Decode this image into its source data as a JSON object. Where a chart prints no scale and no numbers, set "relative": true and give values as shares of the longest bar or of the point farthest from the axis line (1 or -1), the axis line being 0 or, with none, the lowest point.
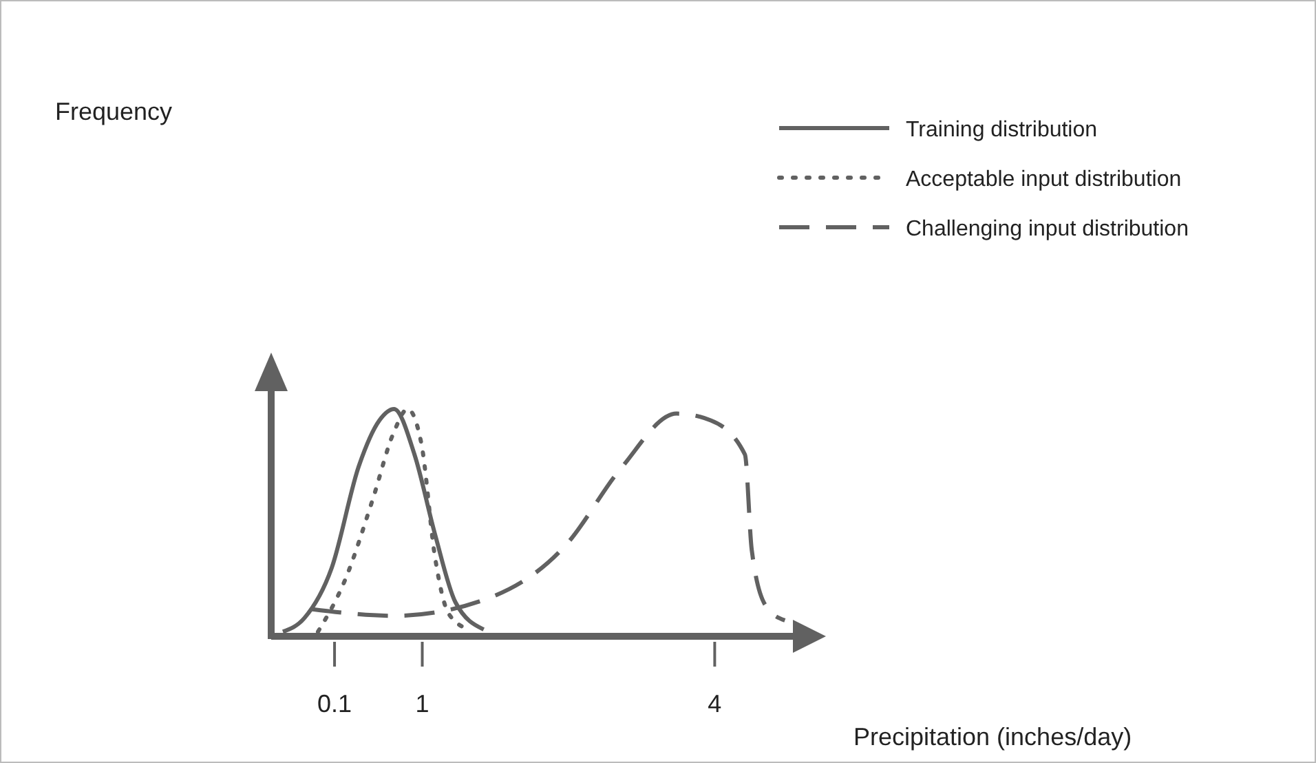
{
  "chart_data": {
    "type": "line",
    "relative": true,
    "annotations": [
      "Frequency"
    ],
    "xlabel": "Precipitation (inches/day)",
    "xlim": [
      -0.55,
      5.0
    ],
    "xticks": [
      0.1,
      1,
      4
    ],
    "legend": "top right",
    "grid": false,
    "marker": "none",
    "tick_labels": "x",
    "series": [
      {
        "name": "Training distribution",
        "color": "#616161",
        "line_style": "solid",
        "x": [
          -0.43,
          -0.21,
          0.07,
          0.35,
          0.56,
          0.71,
          0.92,
          1.13,
          1.34,
          1.63
        ],
        "values": [
          0.02,
          0.08,
          0.3,
          0.75,
          0.95,
          1,
          0.8,
          0.45,
          0.15,
          0.03
        ]
      },
      {
        "name": "Acceptable input distribution",
        "color": "#616161",
        "line_style": "dotted",
        "x": [
          -0.07,
          0.21,
          0.49,
          0.71,
          0.85,
          0.99,
          1.13,
          1.27,
          1.48
        ],
        "values": [
          0.02,
          0.25,
          0.6,
          0.9,
          1,
          0.85,
          0.35,
          0.1,
          0.03
        ]
      },
      {
        "name": "Challenging input distribution",
        "color": "#616161",
        "line_style": "dashed",
        "x": [
          -0.14,
          0.71,
          1.63,
          2.47,
          3.04,
          3.61,
          3.96,
          4.31,
          4.38,
          4.53,
          4.72
        ],
        "values": [
          0.12,
          0.09,
          0.16,
          0.4,
          0.74,
          0.98,
          0.95,
          0.8,
          0.38,
          0.13,
          0.07
        ]
      }
    ]
  }
}
